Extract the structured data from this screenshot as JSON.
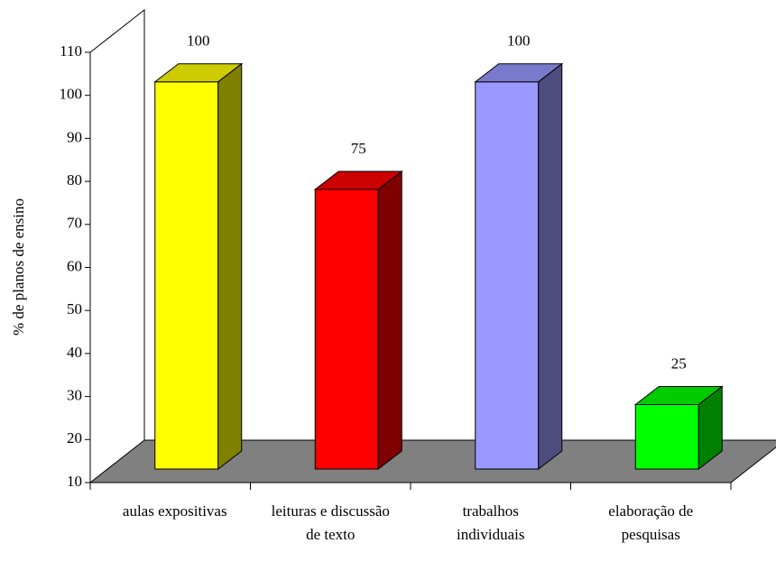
{
  "chart_data": {
    "type": "bar3d",
    "y_label": "% de planos de ensino",
    "categories": [
      "aulas expositivas",
      "leituras e discussão de texto",
      "trabalhos individuais",
      "elaboração de pesquisas"
    ],
    "values": [
      100,
      75,
      100,
      25
    ],
    "colors": [
      "#ffff00",
      "#ff0000",
      "#9999ff",
      "#00ff00"
    ],
    "ylim": [
      10,
      110
    ],
    "yticks": [
      10,
      20,
      30,
      40,
      50,
      60,
      70,
      80,
      90,
      100,
      110
    ],
    "data_labels": true
  }
}
